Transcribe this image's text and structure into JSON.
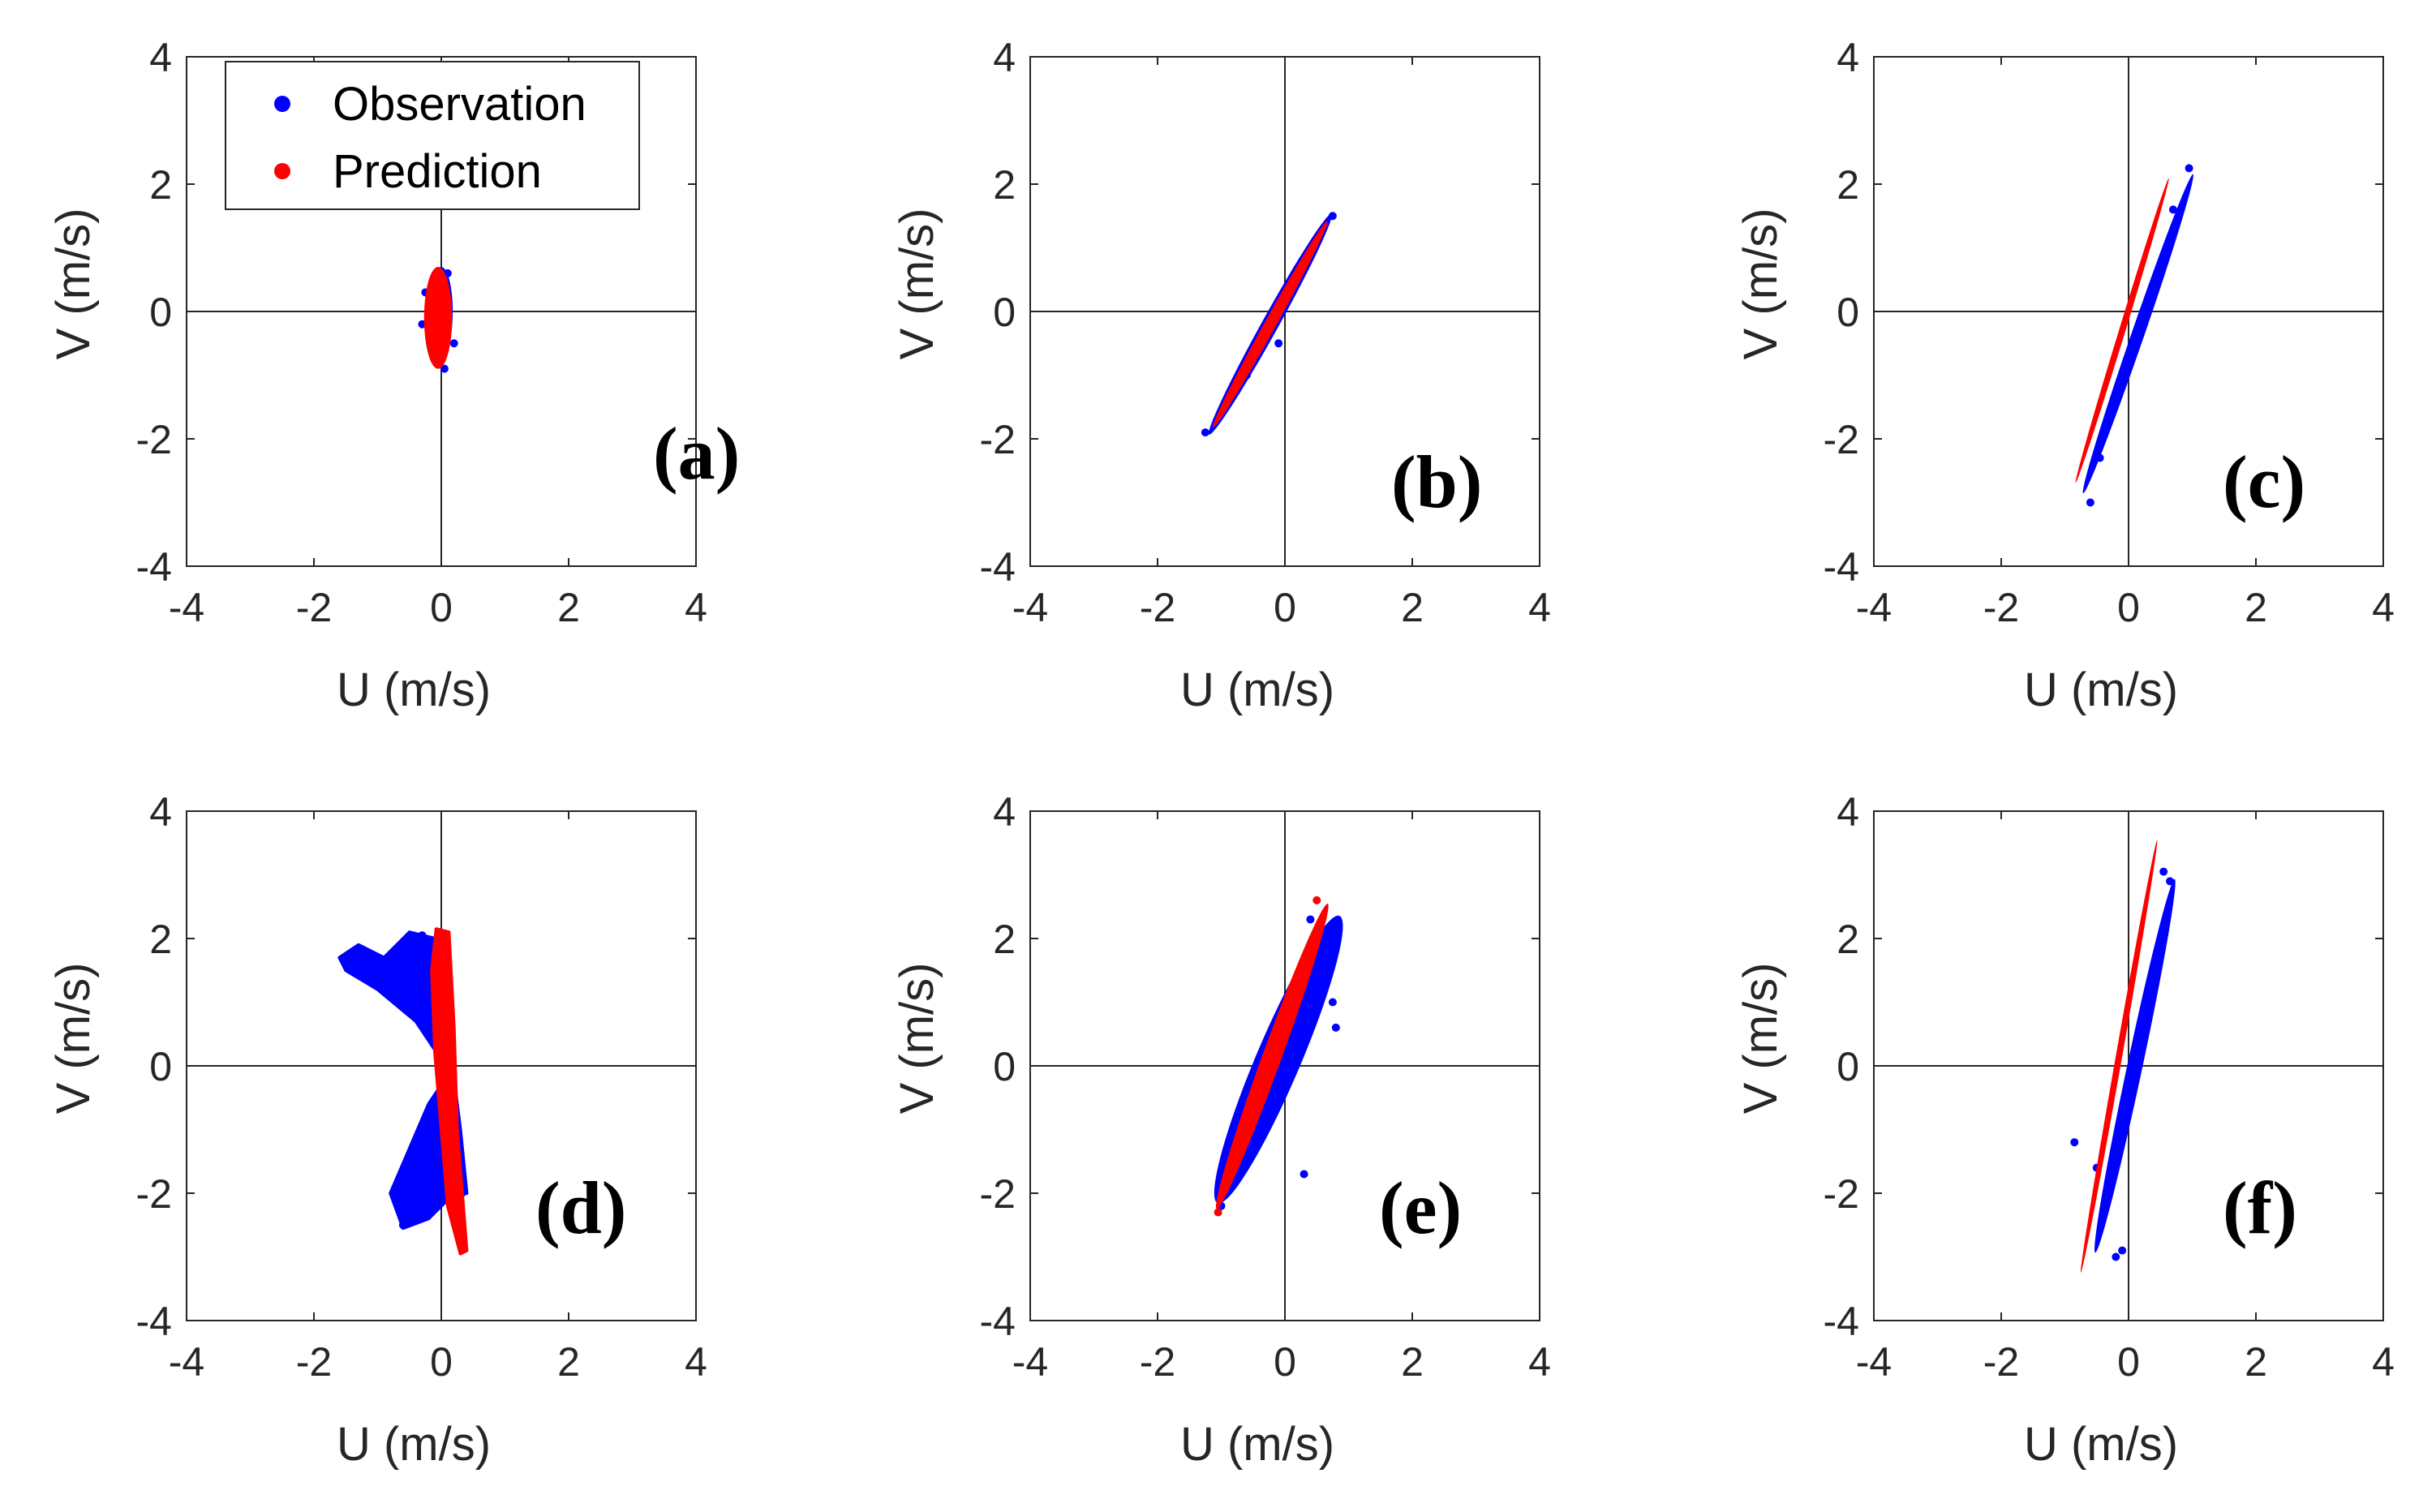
{
  "legend": {
    "entries": [
      {
        "label": "Observation",
        "color": "#0000ff"
      },
      {
        "label": "Prediction",
        "color": "#ff0000"
      }
    ]
  },
  "chart_data": [
    {
      "type": "scatter",
      "panel": "(a)",
      "xlabel": "U (m/s)",
      "ylabel": "V (m/s)",
      "xlim": [
        -4,
        4
      ],
      "ylim": [
        -4,
        4
      ],
      "xticks": [
        -4,
        -2,
        0,
        2,
        4
      ],
      "yticks": [
        -4,
        -2,
        0,
        2,
        4
      ],
      "series": [
        {
          "name": "Observation",
          "color": "#0000ff",
          "shape": "ellipse",
          "center": [
            0,
            0
          ],
          "semi_major": 0.7,
          "semi_minor": 0.18,
          "angle_deg": 90,
          "points": [
            [
              -0.3,
              -0.2
            ],
            [
              0.05,
              -0.9
            ],
            [
              0.1,
              0.6
            ],
            [
              -0.25,
              0.3
            ],
            [
              0.2,
              -0.5
            ],
            [
              0.1,
              -0.1
            ]
          ]
        },
        {
          "name": "Prediction",
          "color": "#ff0000",
          "shape": "ellipse",
          "center": [
            -0.05,
            -0.1
          ],
          "semi_major": 0.8,
          "semi_minor": 0.22,
          "angle_deg": 90
        }
      ]
    },
    {
      "type": "scatter",
      "panel": "(b)",
      "xlabel": "U (m/s)",
      "ylabel": "V (m/s)",
      "xlim": [
        -4,
        4
      ],
      "ylim": [
        -4,
        4
      ],
      "xticks": [
        -4,
        -2,
        0,
        2,
        4
      ],
      "yticks": [
        -4,
        -2,
        0,
        2,
        4
      ],
      "series": [
        {
          "name": "Observation",
          "color": "#0000ff",
          "shape": "ellipse",
          "center": [
            -0.23,
            -0.2
          ],
          "semi_major": 1.98,
          "semi_minor": 0.13,
          "angle_deg": 61,
          "points": [
            [
              -1.25,
              -1.9
            ],
            [
              0.75,
              1.5
            ],
            [
              -0.6,
              -1.0
            ],
            [
              0.3,
              0.7
            ],
            [
              -0.1,
              -0.5
            ]
          ]
        },
        {
          "name": "Prediction",
          "color": "#ff0000",
          "shape": "ellipse",
          "center": [
            -0.23,
            -0.2
          ],
          "semi_major": 1.85,
          "semi_minor": 0.09,
          "angle_deg": 61
        }
      ]
    },
    {
      "type": "scatter",
      "panel": "(c)",
      "xlabel": "U (m/s)",
      "ylabel": "V (m/s)",
      "xlim": [
        -4,
        4
      ],
      "ylim": [
        -4,
        4
      ],
      "xticks": [
        -4,
        -2,
        0,
        2,
        4
      ],
      "yticks": [
        -4,
        -2,
        0,
        2,
        4
      ],
      "series": [
        {
          "name": "Observation",
          "color": "#0000ff",
          "shape": "ellipse",
          "center": [
            0.15,
            -0.35
          ],
          "semi_major": 2.65,
          "semi_minor": 0.1,
          "angle_deg": 71,
          "points": [
            [
              -0.6,
              -3.0
            ],
            [
              0.95,
              2.25
            ],
            [
              -0.45,
              -2.3
            ],
            [
              0.7,
              1.6
            ],
            [
              0.1,
              -0.4
            ]
          ]
        },
        {
          "name": "Prediction",
          "color": "#ff0000",
          "shape": "ellipse",
          "center": [
            -0.1,
            -0.3
          ],
          "semi_major": 2.5,
          "semi_minor": 0.05,
          "angle_deg": 73
        }
      ]
    },
    {
      "type": "scatter",
      "panel": "(d)",
      "xlabel": "U (m/s)",
      "ylabel": "V (m/s)",
      "xlim": [
        -4,
        4
      ],
      "ylim": [
        -4,
        4
      ],
      "xticks": [
        -4,
        -2,
        0,
        2,
        4
      ],
      "yticks": [
        -4,
        -2,
        0,
        2,
        4
      ],
      "series": [
        {
          "name": "Observation",
          "color": "#0000ff",
          "shape": "blob",
          "regions": [
            {
              "polygon": [
                [
                  -1.6,
                  1.7
                ],
                [
                  -1.3,
                  1.9
                ],
                [
                  -0.9,
                  1.7
                ],
                [
                  -0.5,
                  2.1
                ],
                [
                  -0.1,
                  2.0
                ],
                [
                  0.0,
                  0.8
                ],
                [
                  0.0,
                  0.1
                ],
                [
                  -0.4,
                  0.7
                ],
                [
                  -1.0,
                  1.2
                ],
                [
                  -1.5,
                  1.5
                ]
              ]
            },
            {
              "polygon": [
                [
                  0.0,
                  -0.3
                ],
                [
                  -0.2,
                  -0.6
                ],
                [
                  -0.5,
                  -1.3
                ],
                [
                  -0.8,
                  -2.0
                ],
                [
                  -0.6,
                  -2.55
                ],
                [
                  -0.2,
                  -2.4
                ],
                [
                  0.1,
                  -2.1
                ],
                [
                  0.4,
                  -2.0
                ],
                [
                  0.3,
                  -1.0
                ],
                [
                  0.2,
                  -0.2
                ]
              ]
            }
          ],
          "points": [
            [
              -1.5,
              1.6
            ],
            [
              -0.6,
              -2.5
            ],
            [
              0.3,
              -2.05
            ],
            [
              -0.3,
              2.05
            ]
          ]
        },
        {
          "name": "Prediction",
          "color": "#ff0000",
          "shape": "blob",
          "regions": [
            {
              "polygon": [
                [
                  -0.08,
                  2.15
                ],
                [
                  0.12,
                  2.1
                ],
                [
                  0.2,
                  0.6
                ],
                [
                  0.25,
                  -1.0
                ],
                [
                  0.4,
                  -2.9
                ],
                [
                  0.3,
                  -2.95
                ],
                [
                  0.1,
                  -2.2
                ],
                [
                  0.0,
                  -1.0
                ],
                [
                  -0.1,
                  0.2
                ],
                [
                  -0.15,
                  1.5
                ]
              ]
            }
          ]
        }
      ]
    },
    {
      "type": "scatter",
      "panel": "(e)",
      "xlabel": "U (m/s)",
      "ylabel": "V (m/s)",
      "xlim": [
        -4,
        4
      ],
      "ylim": [
        -4,
        4
      ],
      "xticks": [
        -4,
        -2,
        0,
        2,
        4
      ],
      "yticks": [
        -4,
        -2,
        0,
        2,
        4
      ],
      "series": [
        {
          "name": "Observation",
          "color": "#0000ff",
          "shape": "ellipse",
          "center": [
            -0.1,
            0.1
          ],
          "semi_major": 2.45,
          "semi_minor": 0.35,
          "angle_deg": 67,
          "points": [
            [
              0.8,
              0.6
            ],
            [
              0.6,
              1.2
            ],
            [
              -1.0,
              -2.2
            ],
            [
              0.4,
              2.3
            ],
            [
              0.3,
              -1.7
            ],
            [
              0.75,
              1.0
            ]
          ]
        },
        {
          "name": "Prediction",
          "color": "#ff0000",
          "shape": "ellipse",
          "center": [
            -0.2,
            0.15
          ],
          "semi_major": 2.55,
          "semi_minor": 0.15,
          "angle_deg": 70,
          "points": [
            [
              0.5,
              2.6
            ],
            [
              -1.05,
              -2.3
            ]
          ]
        }
      ]
    },
    {
      "type": "scatter",
      "panel": "(f)",
      "xlabel": "U (m/s)",
      "ylabel": "V (m/s)",
      "xlim": [
        -4,
        4
      ],
      "ylim": [
        -4,
        4
      ],
      "xticks": [
        -4,
        -2,
        0,
        2,
        4
      ],
      "yticks": [
        -4,
        -2,
        0,
        2,
        4
      ],
      "series": [
        {
          "name": "Observation",
          "color": "#0000ff",
          "shape": "ellipse",
          "center": [
            0.1,
            0.0
          ],
          "semi_major": 3.0,
          "semi_minor": 0.12,
          "angle_deg": 78,
          "points": [
            [
              -0.85,
              -1.2
            ],
            [
              -0.5,
              -1.6
            ],
            [
              -0.1,
              -2.9
            ],
            [
              0.65,
              2.9
            ],
            [
              -0.2,
              -3.0
            ],
            [
              0.55,
              3.05
            ]
          ]
        },
        {
          "name": "Prediction",
          "color": "#ff0000",
          "shape": "ellipse",
          "center": [
            -0.15,
            0.15
          ],
          "semi_major": 3.45,
          "semi_minor": 0.05,
          "angle_deg": 80
        }
      ]
    }
  ]
}
